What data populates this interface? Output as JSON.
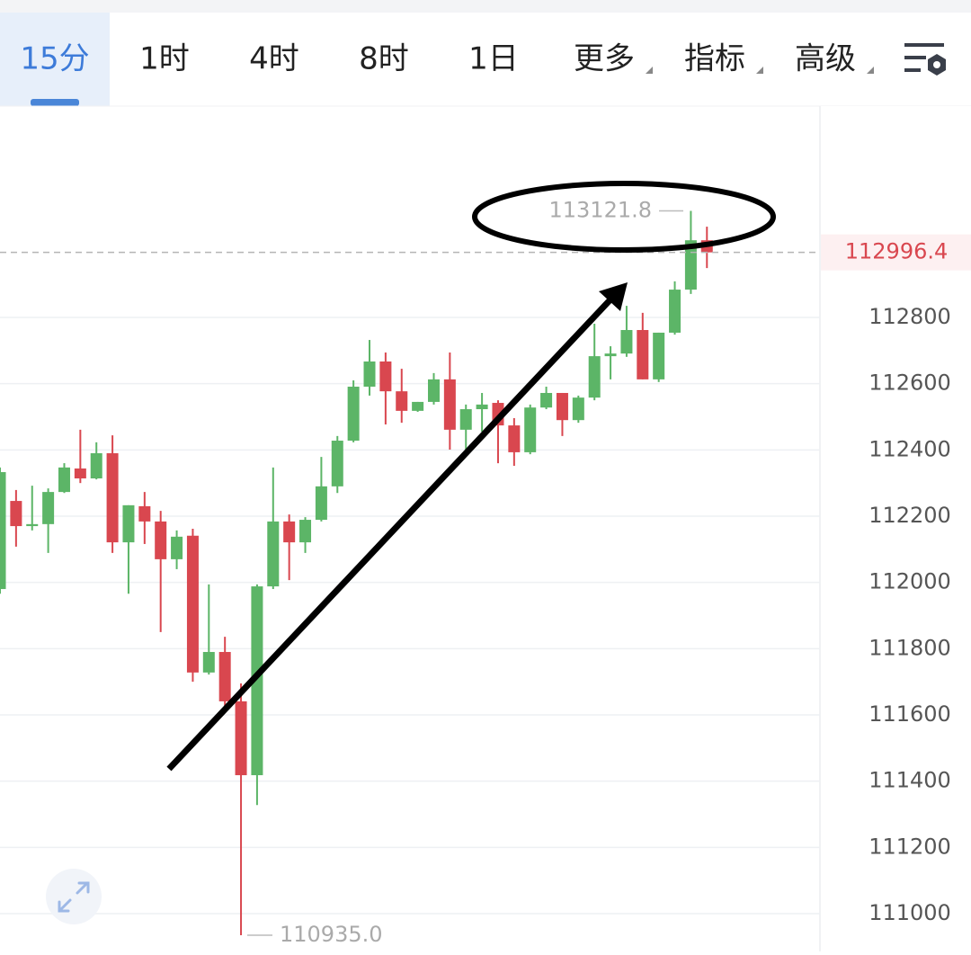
{
  "toolbar": {
    "tabs": [
      "15分",
      "1时",
      "4时",
      "8时",
      "1日",
      "更多",
      "指标",
      "高级"
    ],
    "active": 0
  },
  "chart_data": {
    "type": "candlestick",
    "up_color": "#5cb567",
    "down_color": "#d9474f",
    "open": [
      111980,
      112246,
      112170,
      112176,
      112273,
      112344,
      112314,
      112390,
      112121,
      112230,
      112184,
      112070,
      112141,
      111728,
      111790,
      111641,
      111418,
      111988,
      112184,
      112121,
      112189,
      112290,
      112428,
      112591,
      112667,
      112577,
      112518,
      112545,
      112613,
      112461,
      112523,
      112542,
      112474,
      112393,
      112528,
      112572,
      112490,
      112558,
      112683,
      112691,
      112762,
      112613,
      112754,
      112884,
      113033
    ],
    "high": [
      112347,
      112279,
      112292,
      112284,
      112360,
      112461,
      112423,
      112444,
      112233,
      112273,
      112216,
      112157,
      112162,
      111994,
      111836,
      111695,
      111994,
      112347,
      112205,
      112197,
      112379,
      112442,
      112610,
      112732,
      112694,
      112645,
      112545,
      112632,
      112694,
      112537,
      112572,
      112550,
      112496,
      112537,
      112591,
      112572,
      112564,
      112781,
      112713,
      112835,
      112814,
      112754,
      112909,
      113121.8,
      113074
    ],
    "low": [
      111966,
      112108,
      112157,
      112089,
      112270,
      112300,
      112311,
      112089,
      111966,
      112116,
      111850,
      112040,
      111700,
      111722,
      111627,
      110935,
      111328,
      111980,
      112007,
      112089,
      112184,
      112270,
      112423,
      112564,
      112477,
      112482,
      112515,
      112537,
      112401,
      112401,
      112455,
      112360,
      112352,
      112387,
      112523,
      112442,
      112482,
      112550,
      112613,
      112681,
      112613,
      112605,
      112748,
      112871,
      112949
    ],
    "close": [
      112333,
      112170,
      112176,
      112273,
      112347,
      112314,
      112390,
      112121,
      112233,
      112184,
      112070,
      112138,
      111728,
      111790,
      111641,
      111418,
      111988,
      112184,
      112121,
      112189,
      112290,
      112428,
      112591,
      112667,
      112577,
      112518,
      112545,
      112613,
      112461,
      112523,
      112537,
      112474,
      112393,
      112528,
      112572,
      112490,
      112558,
      112683,
      112691,
      112762,
      112613,
      112754,
      112884,
      113033,
      112996.4
    ],
    "ylim": [
      110886,
      113438
    ],
    "yticks": [
      112800,
      112600,
      112400,
      112200,
      112000,
      111800,
      111600,
      111400,
      111200,
      111000
    ],
    "grid": true,
    "high_mark": {
      "value": 113121.8,
      "label": "113121.8"
    },
    "low_mark": {
      "value": 110935.0,
      "label": "110935.0"
    },
    "last": {
      "value": 112996.4,
      "label": "112996.4"
    }
  }
}
